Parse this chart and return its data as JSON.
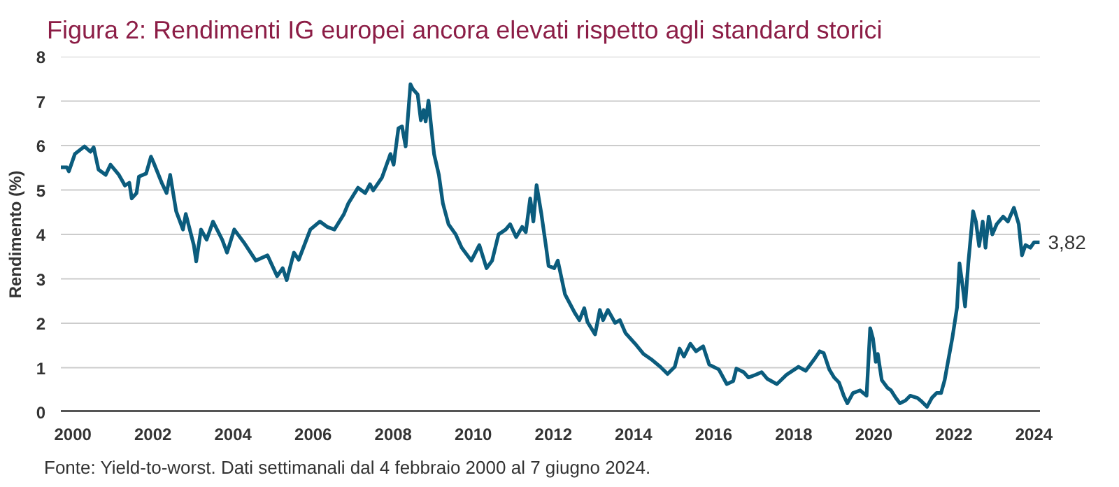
{
  "chart_data": {
    "type": "line",
    "title": "Figura 2: Rendimenti IG europei ancora elevati rispetto agli standard storici",
    "ylabel": "Rendimento (%)",
    "annotations": [
      {
        "text": "3,82",
        "x": 2024.14,
        "y": 3.82
      },
      "Fonte: Yield-to-worst. Dati settimanali dal 4 febbraio 2000 al 7 giugno 2024."
    ],
    "x": [
      1999.7,
      1999.85,
      1999.9,
      2000.05,
      2000.29,
      2000.44,
      2000.52,
      2000.64,
      2000.82,
      2000.94,
      2001.15,
      2001.3,
      2001.41,
      2001.47,
      2001.59,
      2001.65,
      2001.83,
      2001.95,
      2002.01,
      2002.22,
      2002.34,
      2002.43,
      2002.58,
      2002.75,
      2002.82,
      2003.02,
      2003.08,
      2003.2,
      2003.34,
      2003.5,
      2003.73,
      2003.85,
      2004.03,
      2004.27,
      2004.57,
      2004.86,
      2005.1,
      2005.24,
      2005.34,
      2005.52,
      2005.64,
      2005.93,
      2006.17,
      2006.35,
      2006.53,
      2006.77,
      2006.88,
      2007.12,
      2007.3,
      2007.42,
      2007.5,
      2007.72,
      2007.93,
      2008.01,
      2008.13,
      2008.22,
      2008.31,
      2008.43,
      2008.49,
      2008.61,
      2008.69,
      2008.76,
      2008.81,
      2008.88,
      2009.02,
      2009.14,
      2009.24,
      2009.38,
      2009.56,
      2009.71,
      2009.95,
      2010.15,
      2010.33,
      2010.47,
      2010.63,
      2010.81,
      2010.92,
      2011.07,
      2011.22,
      2011.31,
      2011.42,
      2011.5,
      2011.58,
      2011.7,
      2011.82,
      2011.88,
      2012.02,
      2012.11,
      2012.29,
      2012.53,
      2012.65,
      2012.77,
      2012.85,
      2013.04,
      2013.16,
      2013.24,
      2013.36,
      2013.54,
      2013.66,
      2013.8,
      2014.04,
      2014.25,
      2014.47,
      2014.67,
      2014.85,
      2015.03,
      2015.15,
      2015.26,
      2015.42,
      2015.56,
      2015.74,
      2015.89,
      2016.13,
      2016.33,
      2016.49,
      2016.57,
      2016.75,
      2016.87,
      2017.05,
      2017.2,
      2017.34,
      2017.58,
      2017.82,
      2018.12,
      2018.3,
      2018.53,
      2018.65,
      2018.75,
      2018.89,
      2019.01,
      2019.13,
      2019.25,
      2019.34,
      2019.48,
      2019.66,
      2019.82,
      2019.91,
      2019.98,
      2020.05,
      2020.1,
      2020.2,
      2020.34,
      2020.43,
      2020.55,
      2020.65,
      2020.79,
      2020.91,
      2021.09,
      2021.17,
      2021.33,
      2021.45,
      2021.57,
      2021.68,
      2021.77,
      2021.84,
      2021.96,
      2022.08,
      2022.14,
      2022.22,
      2022.28,
      2022.36,
      2022.48,
      2022.55,
      2022.63,
      2022.72,
      2022.79,
      2022.87,
      2022.96,
      2023.07,
      2023.23,
      2023.35,
      2023.5,
      2023.62,
      2023.7,
      2023.79,
      2023.91,
      2024.0,
      2024.14
    ],
    "series": [
      {
        "color": "#0b5c7d",
        "values": [
          5.51,
          5.51,
          5.42,
          5.81,
          5.98,
          5.86,
          5.96,
          5.46,
          5.34,
          5.57,
          5.34,
          5.1,
          5.16,
          4.81,
          4.93,
          5.3,
          5.37,
          5.75,
          5.63,
          5.16,
          4.93,
          5.34,
          4.52,
          4.11,
          4.46,
          3.76,
          3.39,
          4.11,
          3.88,
          4.29,
          3.88,
          3.59,
          4.11,
          3.82,
          3.41,
          3.53,
          3.06,
          3.24,
          2.97,
          3.59,
          3.43,
          4.11,
          4.29,
          4.17,
          4.11,
          4.46,
          4.7,
          5.05,
          4.93,
          5.13,
          4.99,
          5.28,
          5.81,
          5.57,
          6.39,
          6.43,
          5.98,
          7.38,
          7.27,
          7.15,
          6.57,
          6.8,
          6.54,
          7.01,
          5.81,
          5.34,
          4.7,
          4.23,
          4.0,
          3.7,
          3.41,
          3.76,
          3.24,
          3.41,
          4.0,
          4.11,
          4.23,
          3.94,
          4.17,
          4.05,
          4.81,
          4.29,
          5.11,
          4.46,
          3.7,
          3.29,
          3.24,
          3.41,
          2.65,
          2.24,
          2.07,
          2.34,
          2.03,
          1.75,
          2.3,
          2.07,
          2.3,
          2.01,
          2.07,
          1.78,
          1.54,
          1.31,
          1.17,
          1.02,
          0.86,
          1.02,
          1.43,
          1.25,
          1.54,
          1.37,
          1.48,
          1.07,
          0.96,
          0.63,
          0.7,
          0.98,
          0.9,
          0.78,
          0.84,
          0.9,
          0.75,
          0.63,
          0.84,
          1.02,
          0.93,
          1.21,
          1.37,
          1.33,
          0.96,
          0.78,
          0.67,
          0.37,
          0.2,
          0.43,
          0.49,
          0.37,
          1.89,
          1.66,
          1.13,
          1.31,
          0.72,
          0.55,
          0.49,
          0.32,
          0.2,
          0.26,
          0.37,
          0.32,
          0.26,
          0.12,
          0.32,
          0.43,
          0.43,
          0.72,
          1.07,
          1.66,
          2.36,
          3.35,
          2.83,
          2.38,
          3.35,
          4.52,
          4.29,
          3.74,
          4.29,
          3.7,
          4.4,
          4.0,
          4.23,
          4.4,
          4.29,
          4.6,
          4.23,
          3.53,
          3.76,
          3.7,
          3.82,
          3.82
        ]
      }
    ],
    "xlim": [
      1999.7,
      2024.15
    ],
    "xticks": [
      2000,
      2002,
      2004,
      2006,
      2008,
      2010,
      2012,
      2014,
      2016,
      2018,
      2020,
      2022,
      2024
    ],
    "ylim": [
      0,
      8
    ],
    "yticks": [
      0,
      1,
      2,
      3,
      4,
      5,
      6,
      7,
      8
    ],
    "grid": "y",
    "line_style": "solid"
  }
}
